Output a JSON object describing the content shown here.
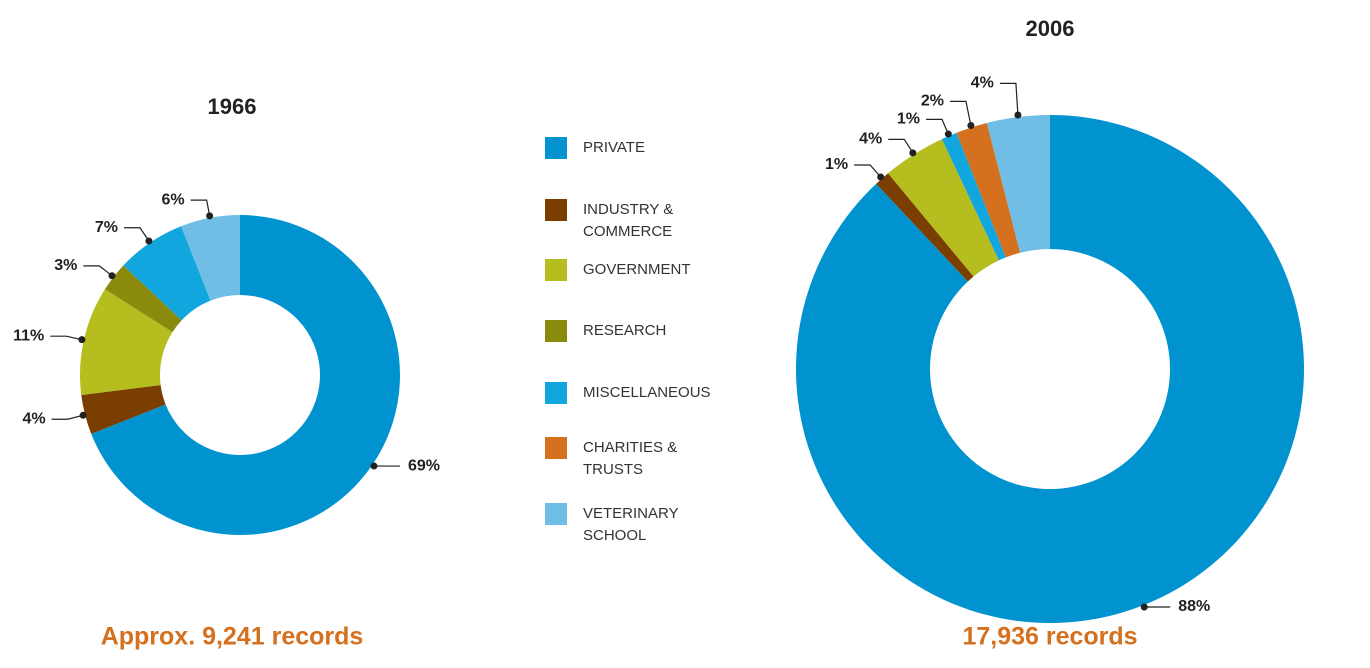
{
  "legend": [
    {
      "name": "PRIVATE",
      "color": "#0093d0"
    },
    {
      "name": "INDUSTRY & COMMERCE",
      "color": "#7a3f00"
    },
    {
      "name": "GOVERNMENT",
      "color": "#b5bd1f"
    },
    {
      "name": "RESEARCH",
      "color": "#8a8b0d"
    },
    {
      "name": "MISCELLANEOUS",
      "color": "#12a6de"
    },
    {
      "name": "CHARITIES & TRUSTS",
      "color": "#d4701e"
    },
    {
      "name": "VETERINARY SCHOOL",
      "color": "#70bde6"
    }
  ],
  "chart_data": [
    {
      "type": "pie",
      "title": "1966",
      "footer": "Approx. 9,241 records",
      "categories": [
        "PRIVATE",
        "INDUSTRY & COMMERCE",
        "GOVERNMENT",
        "RESEARCH",
        "MISCELLANEOUS",
        "VETERINARY SCHOOL"
      ],
      "values": [
        69,
        4,
        11,
        3,
        7,
        6
      ],
      "value_labels": [
        "69%",
        "4%",
        "11%",
        "3%",
        "7%",
        "6%"
      ]
    },
    {
      "type": "pie",
      "title": "2006",
      "footer": "17,936 records",
      "categories": [
        "PRIVATE",
        "INDUSTRY & COMMERCE",
        "GOVERNMENT",
        "MISCELLANEOUS",
        "CHARITIES & TRUSTS",
        "VETERINARY SCHOOL"
      ],
      "values": [
        88,
        1,
        4,
        1,
        2,
        4
      ],
      "value_labels": [
        "88%",
        "1%",
        "4%",
        "1%",
        "2%",
        "4%"
      ]
    }
  ]
}
